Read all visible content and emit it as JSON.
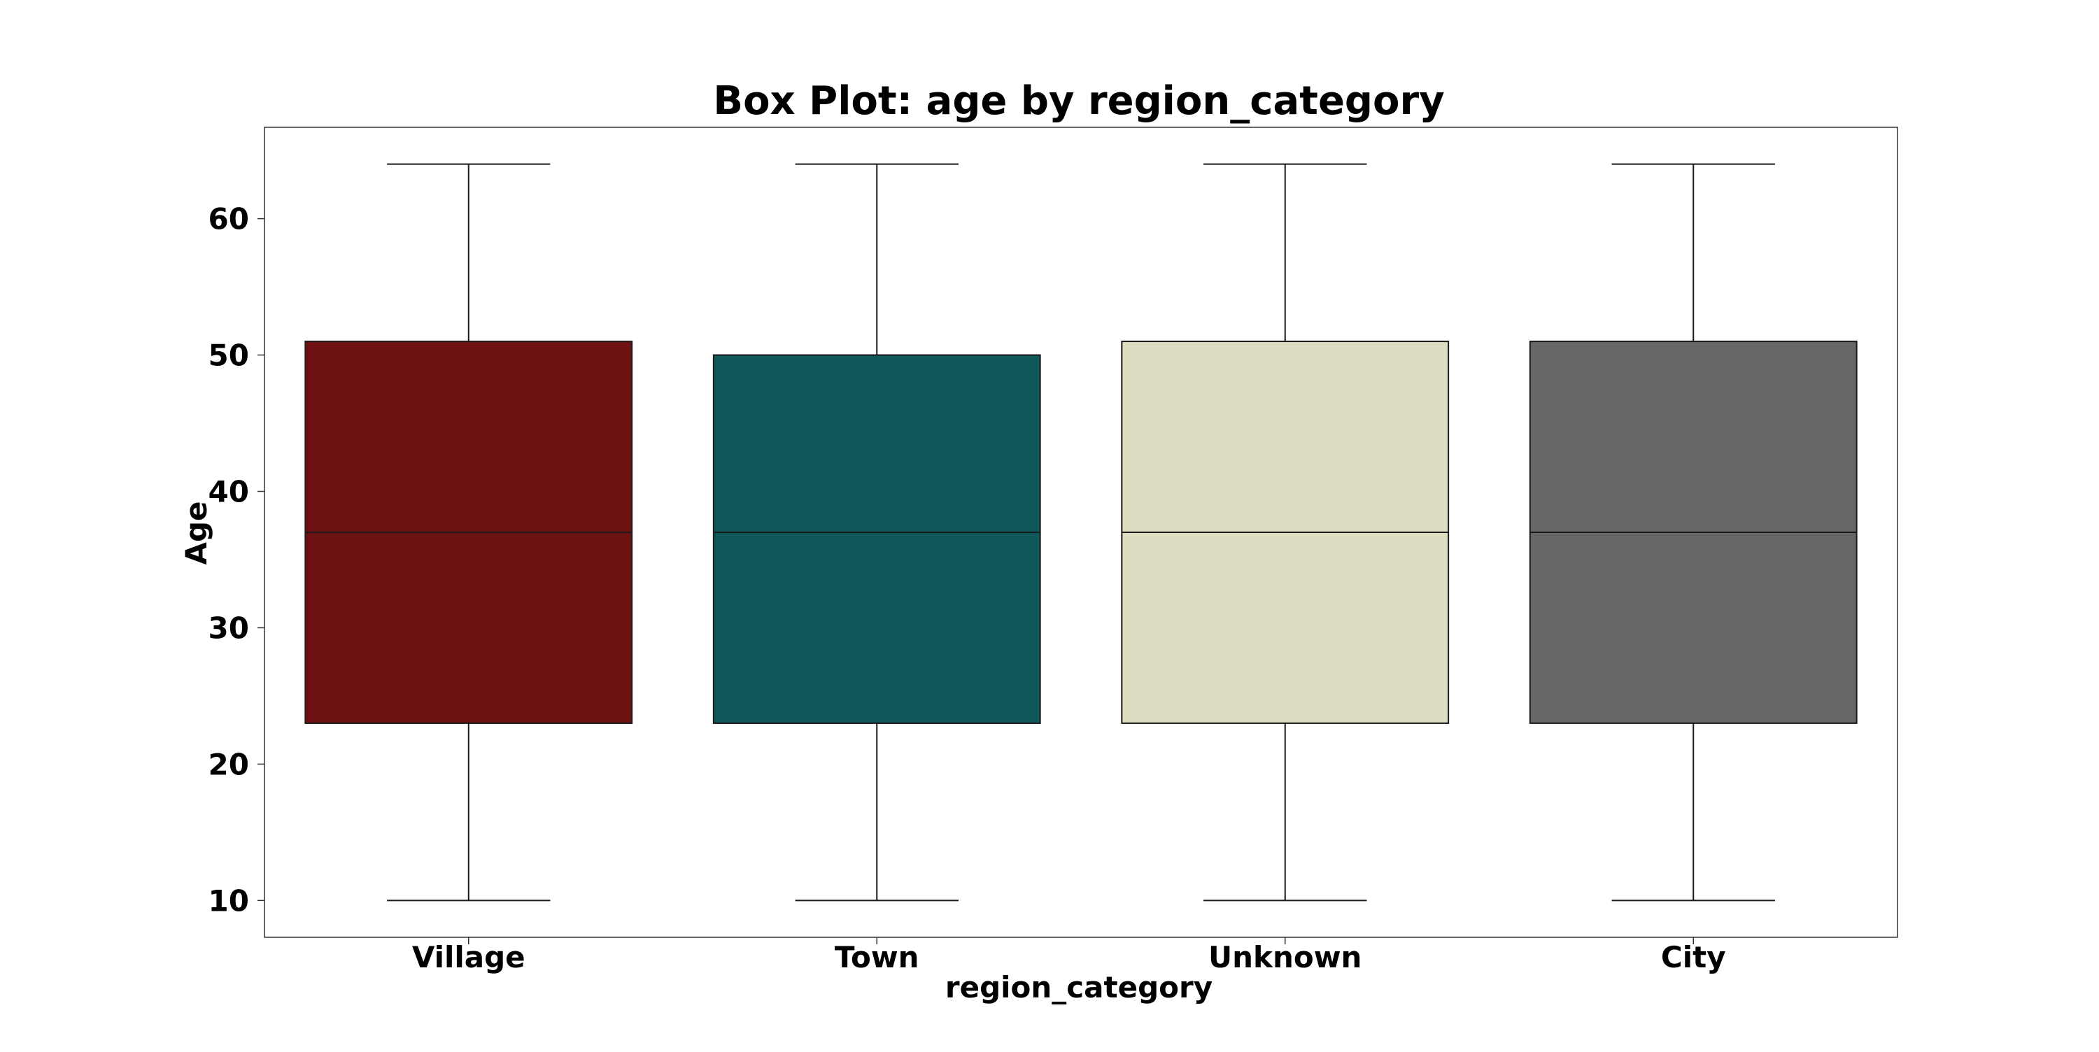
{
  "chart_data": {
    "type": "box",
    "title": "Box Plot: age by region_category",
    "xlabel": "region_category",
    "ylabel": "Age",
    "ylim": [
      7.3,
      66.7
    ],
    "yticks": [
      10,
      20,
      30,
      40,
      50,
      60
    ],
    "grid": false,
    "legend": "none",
    "categories": [
      "Village",
      "Town",
      "Unknown",
      "City"
    ],
    "boxes": [
      {
        "category": "Village",
        "min": 10,
        "q1": 23,
        "median": 37,
        "q3": 51,
        "max": 64,
        "color": "#6e1214"
      },
      {
        "category": "Town",
        "min": 10,
        "q1": 23,
        "median": 37,
        "q3": 50,
        "max": 64,
        "color": "#0f5859"
      },
      {
        "category": "Unknown",
        "min": 10,
        "q1": 23,
        "median": 37,
        "q3": 51,
        "max": 64,
        "color": "#dedcc1"
      },
      {
        "category": "City",
        "min": 10,
        "q1": 23,
        "median": 37,
        "q3": 51,
        "max": 64,
        "color": "#676767"
      }
    ]
  }
}
